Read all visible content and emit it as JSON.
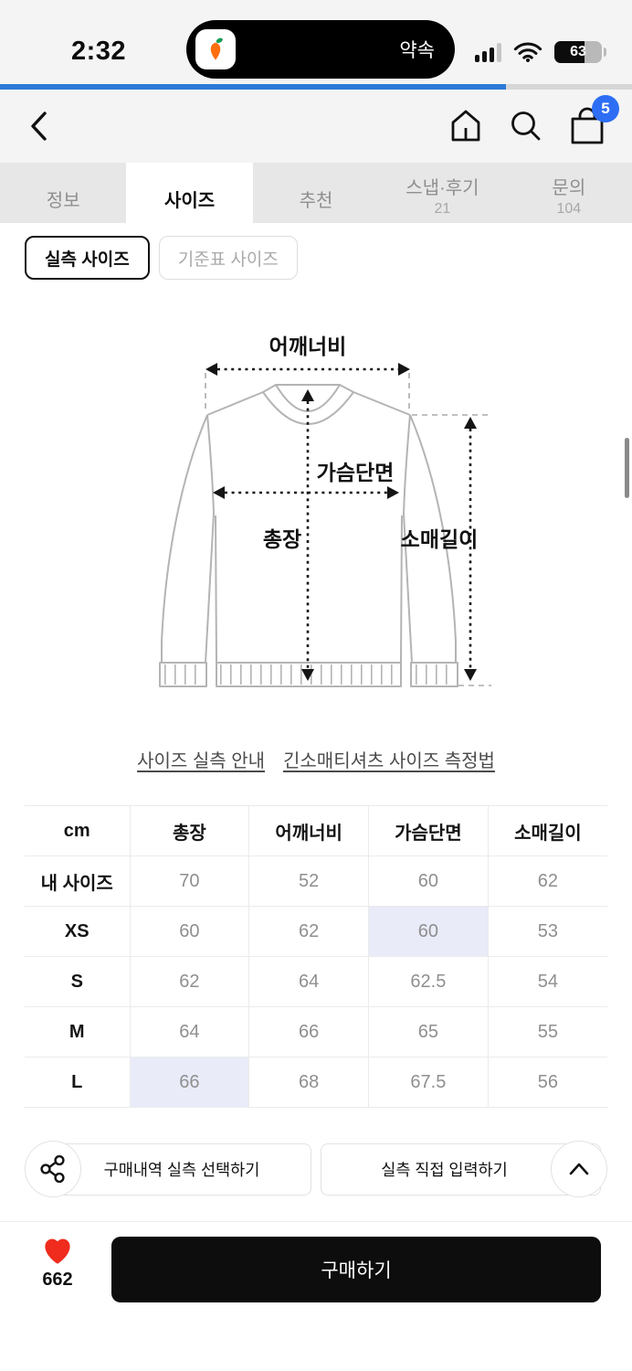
{
  "status_bar": {
    "time": "2:32",
    "island_text": "약속",
    "battery_percent": "63"
  },
  "progress": {
    "percent": 80
  },
  "nav": {
    "cart_badge": "5"
  },
  "tabs": [
    {
      "label": "정보",
      "count": ""
    },
    {
      "label": "사이즈",
      "count": ""
    },
    {
      "label": "추천",
      "count": ""
    },
    {
      "label": "스냅·후기",
      "count": "21"
    },
    {
      "label": "문의",
      "count": "104"
    }
  ],
  "size_toggle": {
    "measured": "실측 사이즈",
    "standard": "기준표 사이즈"
  },
  "diagram": {
    "shoulder": "어깨너비",
    "chest": "가슴단면",
    "length": "총장",
    "sleeve": "소매길이"
  },
  "links": [
    "사이즈 실측 안내",
    "긴소매티셔츠 사이즈 측정법"
  ],
  "table": {
    "unit": "cm",
    "headers": [
      "cm",
      "총장",
      "어깨너비",
      "가슴단면",
      "소매길이"
    ],
    "rows": [
      {
        "label": "내 사이즈",
        "values": [
          "70",
          "52",
          "60",
          "62"
        ],
        "highlight": []
      },
      {
        "label": "XS",
        "values": [
          "60",
          "62",
          "60",
          "53"
        ],
        "highlight": [
          2
        ]
      },
      {
        "label": "S",
        "values": [
          "62",
          "64",
          "62.5",
          "54"
        ],
        "highlight": []
      },
      {
        "label": "M",
        "values": [
          "64",
          "66",
          "65",
          "55"
        ],
        "highlight": []
      },
      {
        "label": "L",
        "values": [
          "66",
          "68",
          "67.5",
          "56"
        ],
        "highlight": [
          0
        ]
      }
    ]
  },
  "actions": {
    "history_select": "구매내역 실측 선택하기",
    "direct_input": "실측 직접 입력하기"
  },
  "bottom": {
    "like_count": "662",
    "buy": "구매하기"
  },
  "colors": {
    "accent_blue": "#2b7ad8",
    "badge_blue": "#2d6ef5",
    "highlight_cell": "#e9ebf9",
    "heart_red": "#ef2c1d",
    "buy_black": "#0d0d0d"
  }
}
